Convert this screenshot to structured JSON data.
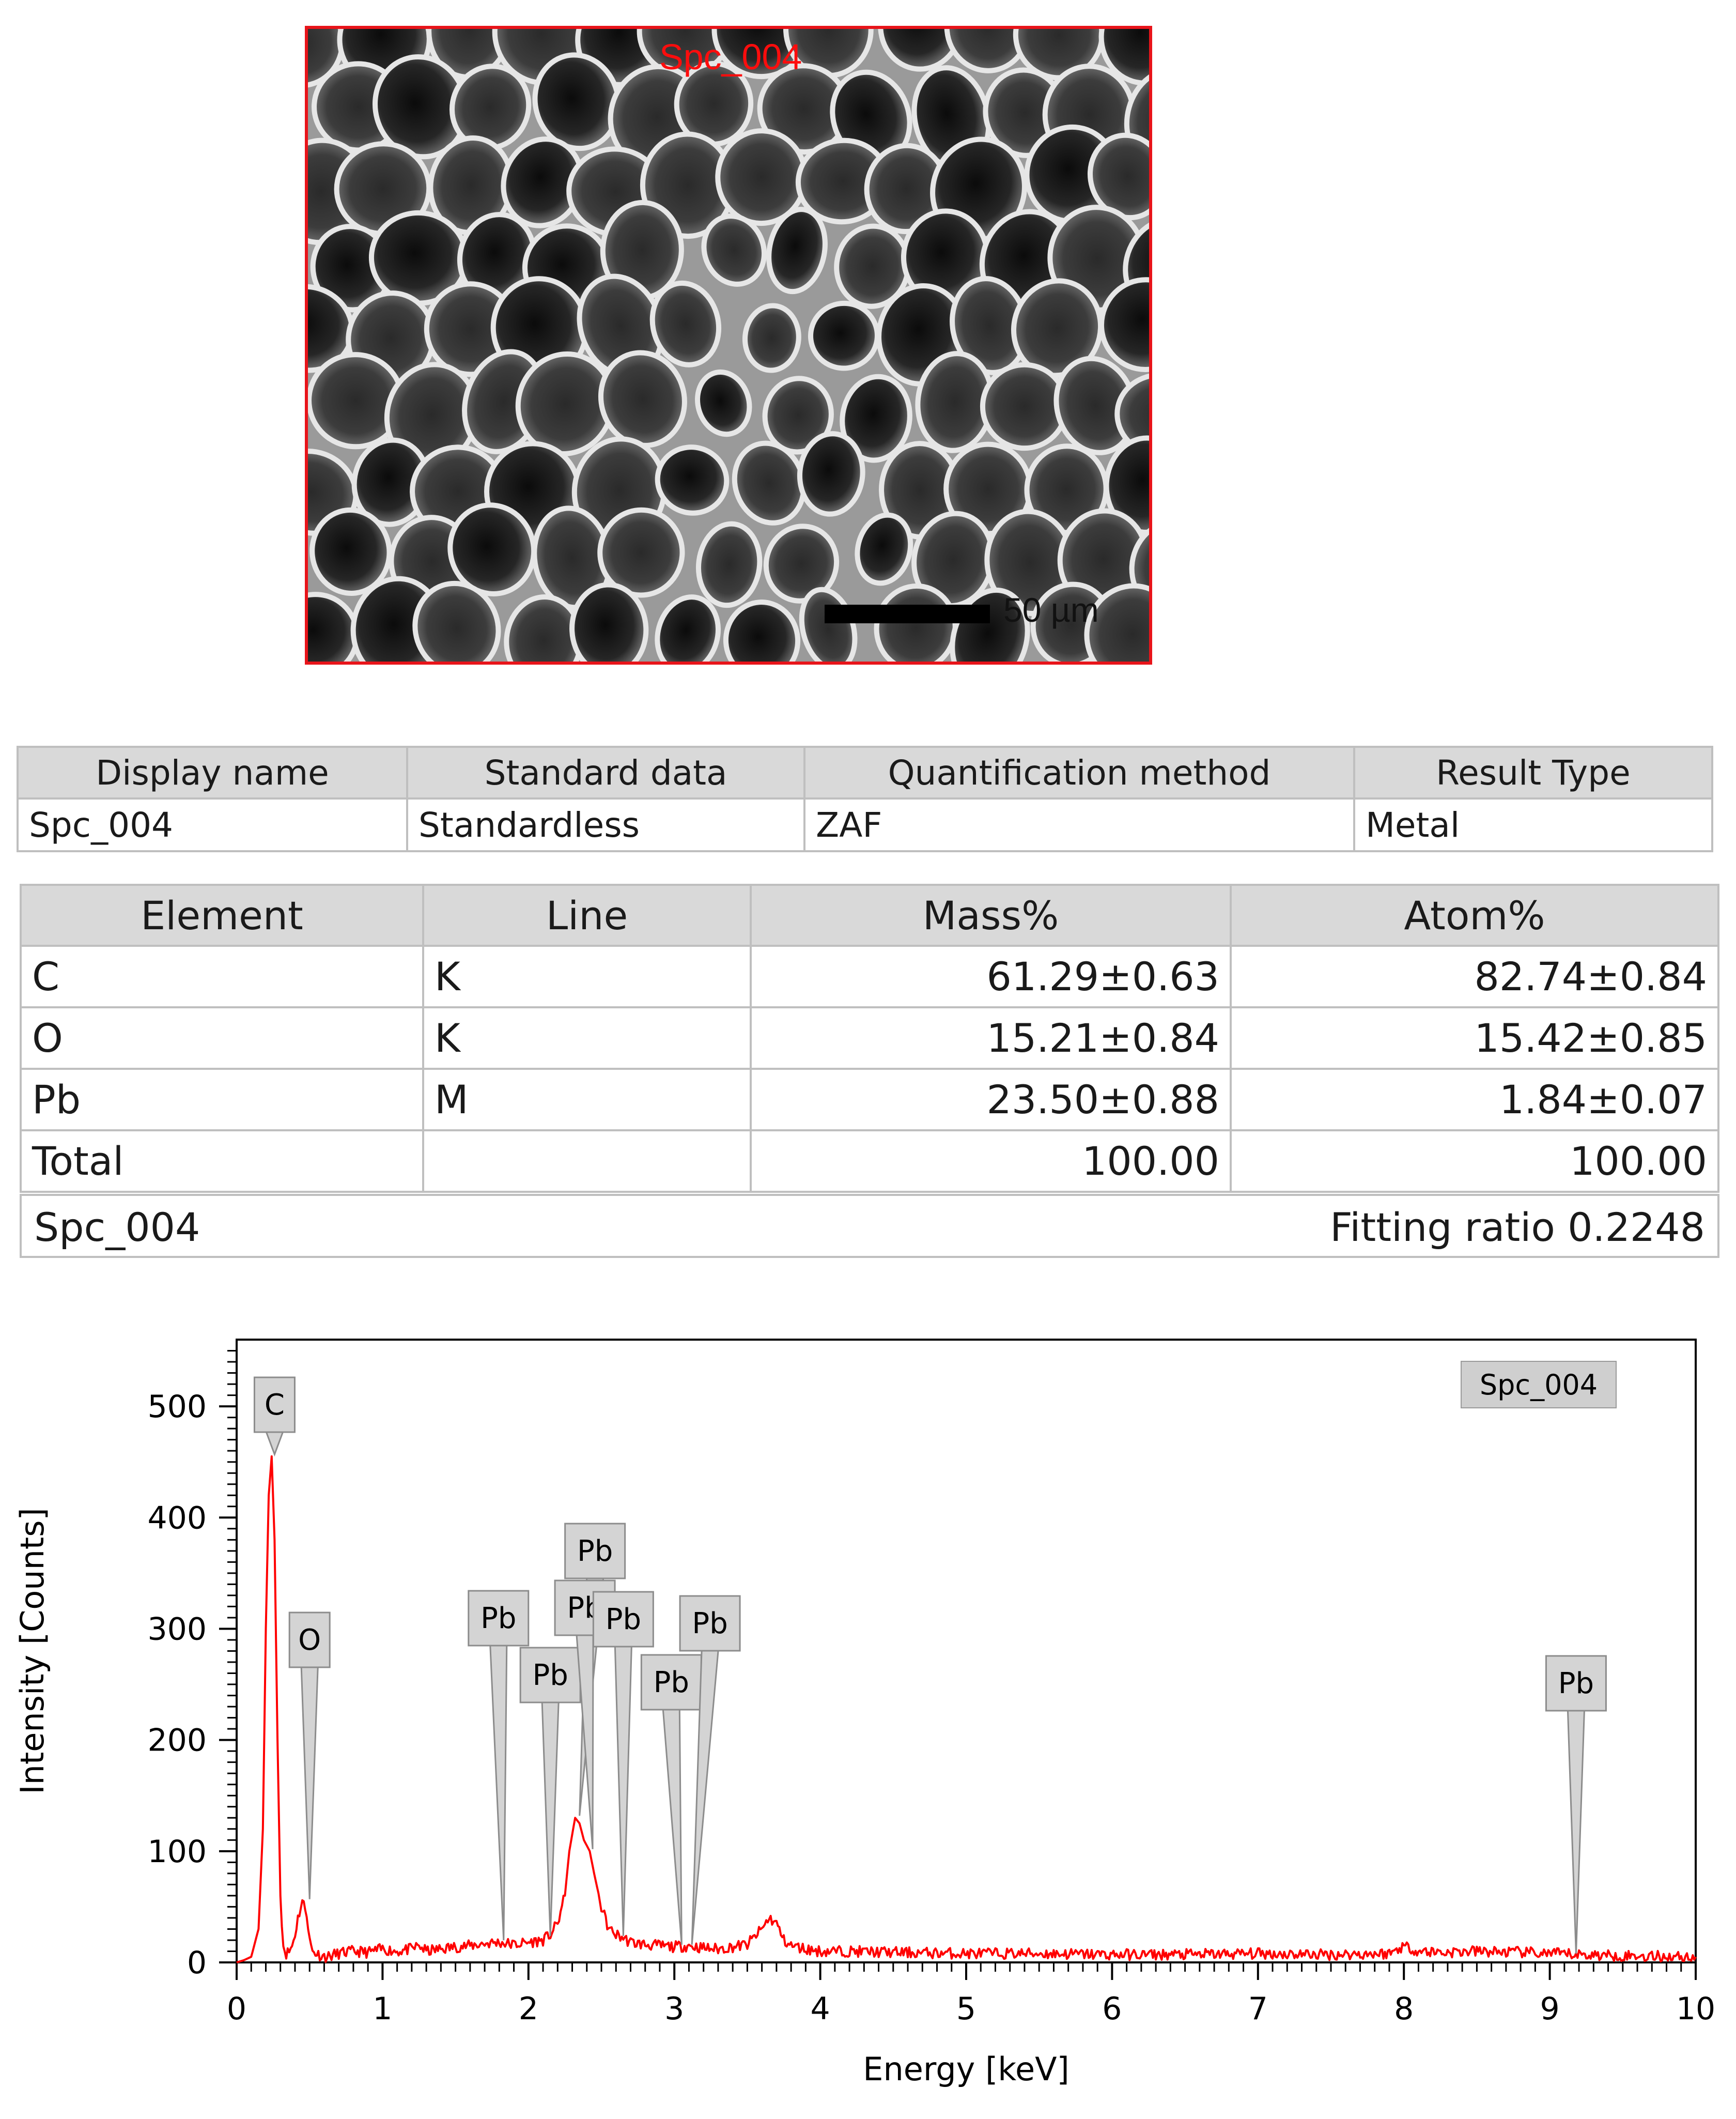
{
  "image": {
    "label": "Spc_004",
    "scale_bar": "50 µm",
    "border_color": "#e8141a"
  },
  "info_table": {
    "headers": [
      "Display name",
      "Standard data",
      "Quantification method",
      "Result Type"
    ],
    "row": [
      "Spc_004",
      "Standardless",
      "ZAF",
      "Metal"
    ]
  },
  "quant_table": {
    "headers": [
      "Element",
      "Line",
      "Mass%",
      "Atom%"
    ],
    "rows": [
      [
        "C",
        "K",
        "61.29±0.63",
        "82.74±0.84"
      ],
      [
        "O",
        "K",
        "15.21±0.84",
        "15.42±0.85"
      ],
      [
        "Pb",
        "M",
        "23.50±0.88",
        "1.84±0.07"
      ],
      [
        "Total",
        "",
        "100.00",
        "100.00"
      ]
    ]
  },
  "footer": {
    "name": "Spc_004",
    "fitting": "Fitting ratio 0.2248"
  },
  "chart_data": {
    "type": "line",
    "xlabel": "Energy [keV]",
    "ylabel": "Intensity [Counts]",
    "xlim": [
      0,
      10
    ],
    "ylim": [
      0,
      560
    ],
    "x_ticks": [
      0,
      1,
      2,
      3,
      4,
      5,
      6,
      7,
      8,
      9,
      10
    ],
    "y_ticks": [
      0,
      100,
      200,
      300,
      400,
      500
    ],
    "legend": "Spc_004",
    "legend_position": "top-right",
    "line_color": "#ff0000",
    "series": [
      {
        "x": [
          0,
          0.05,
          0.1,
          0.15,
          0.18,
          0.2,
          0.22,
          0.24,
          0.26,
          0.28,
          0.3,
          0.32,
          0.34,
          0.36,
          0.38,
          0.4,
          0.42,
          0.45,
          0.48,
          0.5,
          0.52,
          0.55,
          0.58,
          0.62,
          0.7,
          0.8,
          0.9,
          1.0,
          1.1,
          1.2,
          1.25,
          1.3,
          1.4,
          1.5,
          1.6,
          1.7,
          1.8,
          1.9,
          2.0,
          2.1,
          2.15,
          2.2,
          2.25,
          2.28,
          2.32,
          2.35,
          2.38,
          2.42,
          2.45,
          2.5,
          2.55,
          2.6,
          2.65,
          2.7,
          2.8,
          2.9,
          3.0,
          3.1,
          3.2,
          3.3,
          3.4,
          3.5,
          3.6,
          3.65,
          3.7,
          3.75,
          3.8,
          3.9,
          4.0,
          4.2,
          4.5,
          5.0,
          5.5,
          6.0,
          6.5,
          7.0,
          7.5,
          7.9,
          8.0,
          8.1,
          8.3,
          8.5,
          8.8,
          9.0,
          9.2,
          9.5,
          10.0
        ],
        "y": [
          0,
          2,
          5,
          30,
          120,
          300,
          420,
          455,
          380,
          200,
          60,
          15,
          8,
          10,
          15,
          25,
          40,
          55,
          45,
          20,
          10,
          8,
          6,
          5,
          8,
          10,
          9,
          12,
          10,
          12,
          15,
          10,
          12,
          14,
          15,
          17,
          18,
          16,
          18,
          20,
          25,
          35,
          60,
          100,
          130,
          125,
          110,
          100,
          80,
          50,
          30,
          25,
          22,
          18,
          16,
          15,
          14,
          15,
          13,
          12,
          14,
          16,
          30,
          40,
          35,
          20,
          15,
          12,
          10,
          10,
          9,
          8,
          8,
          7,
          7,
          8,
          7,
          8,
          15,
          10,
          9,
          10,
          9,
          8,
          7,
          6,
          5
        ]
      }
    ],
    "annotations": [
      {
        "label": "C",
        "x": 0.26,
        "y": 455
      },
      {
        "label": "O",
        "x": 0.5,
        "y": 55
      },
      {
        "label": "Pb",
        "x": 1.83,
        "y": 18
      },
      {
        "label": "Pb",
        "x": 2.15,
        "y": 22
      },
      {
        "label": "Pb",
        "x": 2.35,
        "y": 130
      },
      {
        "label": "Pb",
        "x": 2.44,
        "y": 100
      },
      {
        "label": "Pb",
        "x": 2.65,
        "y": 22
      },
      {
        "label": "Pb",
        "x": 3.05,
        "y": 14
      },
      {
        "label": "Pb",
        "x": 3.12,
        "y": 14
      },
      {
        "label": "Pb",
        "x": 9.18,
        "y": 6
      }
    ]
  }
}
